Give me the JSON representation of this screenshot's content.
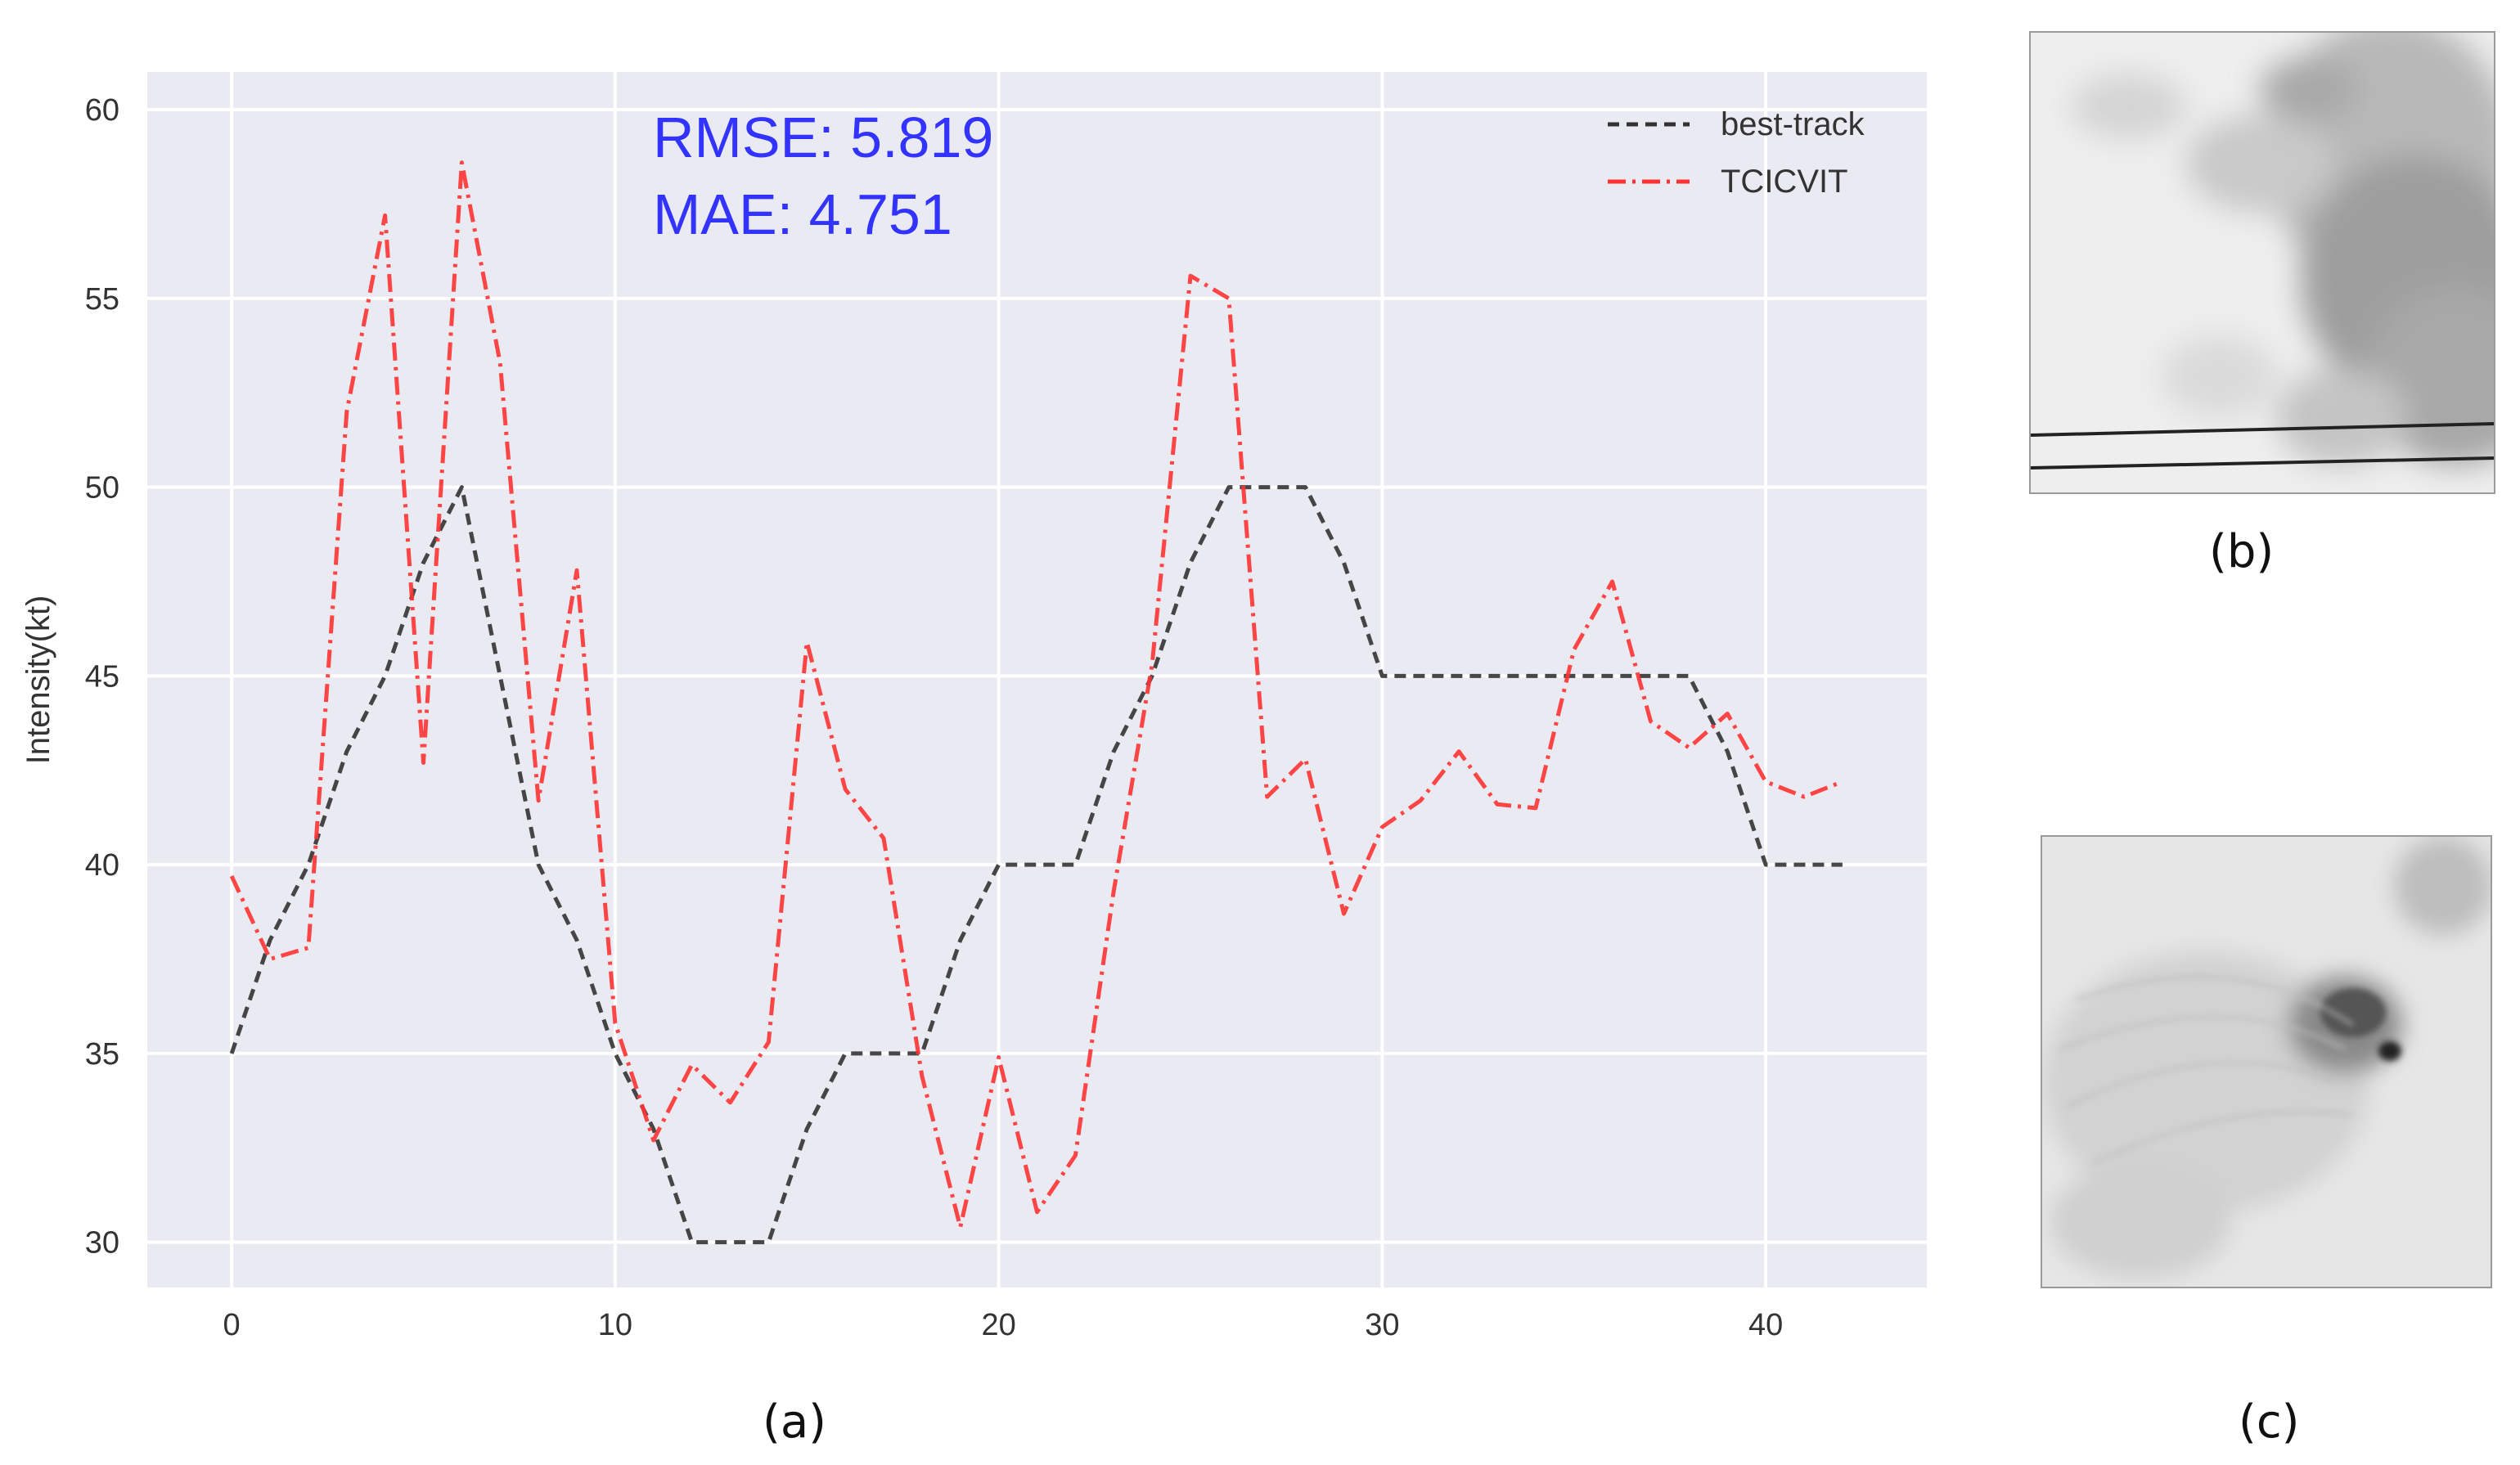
{
  "chart_data": {
    "type": "line",
    "ylabel": "Intensity(kt)",
    "xlabel": "",
    "xlim": [
      -2.2,
      44.2
    ],
    "ylim": [
      28.8,
      61.0
    ],
    "x_ticks": [
      0,
      10,
      20,
      30,
      40
    ],
    "y_ticks": [
      30,
      35,
      40,
      45,
      50,
      55,
      60
    ],
    "grid": true,
    "legend_position": "top-right",
    "background": "#EAEAF2",
    "x": [
      0,
      1,
      2,
      3,
      4,
      5,
      6,
      7,
      8,
      9,
      10,
      11,
      12,
      13,
      14,
      15,
      16,
      17,
      18,
      19,
      20,
      21,
      22,
      23,
      24,
      25,
      26,
      27,
      28,
      29,
      30,
      31,
      32,
      33,
      34,
      35,
      36,
      37,
      38,
      39,
      40,
      41,
      42
    ],
    "series": [
      {
        "name": "best-track",
        "color": "#333333",
        "style": "dashed",
        "values": [
          35,
          38,
          40,
          43,
          45,
          48,
          50,
          45,
          40,
          38,
          35,
          33,
          30,
          30,
          30,
          33,
          35,
          35,
          35,
          38,
          40,
          40,
          40,
          43,
          45,
          48,
          50,
          50,
          50,
          48,
          45,
          45,
          45,
          45,
          45,
          45,
          45,
          45,
          45,
          43,
          40,
          40,
          40
        ]
      },
      {
        "name": "TCICVIT",
        "color": "#FF3333",
        "style": "dashdot",
        "values": [
          39.7,
          37.5,
          37.8,
          52,
          57.2,
          42.7,
          58.6,
          53.3,
          41.7,
          47.8,
          35.8,
          32.7,
          34.7,
          33.7,
          35.3,
          45.9,
          42,
          40.7,
          34.4,
          30.4,
          34.9,
          30.8,
          32.3,
          39.3,
          45.3,
          55.6,
          55,
          41.8,
          42.8,
          38.7,
          41,
          41.7,
          43,
          41.6,
          41.5,
          45.7,
          47.5,
          43.8,
          43.1,
          44,
          42.2,
          41.8,
          42.2
        ]
      }
    ],
    "annotations": [
      "RMSE: 5.819",
      "MAE: 4.751"
    ]
  },
  "captions": {
    "a": "(a)",
    "b": "(b)",
    "c": "(c)"
  }
}
